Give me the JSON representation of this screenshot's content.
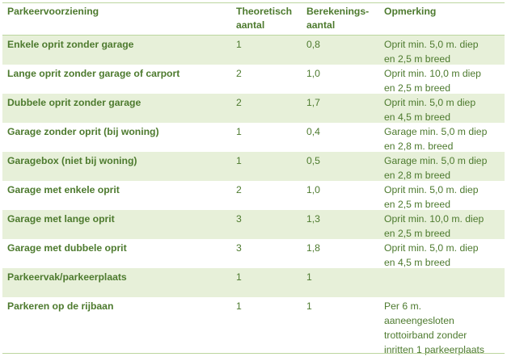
{
  "table": {
    "headers": [
      "Parkeervoorziening",
      "Theoretisch aantal",
      "Berekenings-aantal",
      "Opmerking"
    ],
    "header_lines": [
      [
        "Parkeervoorziening"
      ],
      [
        "Theoretisch",
        "aantal"
      ],
      [
        "Berekenings-",
        "aantal"
      ],
      [
        "Opmerking"
      ]
    ],
    "rows": [
      {
        "name": "Enkele oprit zonder garage",
        "theoretisch": "1",
        "berekening": "0,8",
        "opmerking": [
          "Oprit min. 5,0 m. diep",
          "en 2,5 m breed"
        ]
      },
      {
        "name": "Lange oprit zonder garage of carport",
        "theoretisch": "2",
        "berekening": "1,0",
        "opmerking": [
          "Oprit min. 10,0 m diep",
          "en 2,5 m breed"
        ]
      },
      {
        "name": "Dubbele oprit zonder garage",
        "theoretisch": "2",
        "berekening": "1,7",
        "opmerking": [
          "Oprit min. 5,0 m diep",
          "en 4,5 m breed"
        ]
      },
      {
        "name": "Garage zonder oprit (bij woning)",
        "theoretisch": "1",
        "berekening": "0,4",
        "opmerking": [
          "Garage min. 5,0 m diep",
          "en 2,8 m. breed"
        ]
      },
      {
        "name": "Garagebox (niet bij woning)",
        "theoretisch": "1",
        "berekening": "0,5",
        "opmerking": [
          "Garage min. 5,0 m diep",
          "en 2,8 m breed"
        ]
      },
      {
        "name": "Garage met enkele oprit",
        "theoretisch": "2",
        "berekening": "1,0",
        "opmerking": [
          "Oprit min. 5,0 m. diep",
          "en 2,5 m breed"
        ]
      },
      {
        "name": "Garage met lange oprit",
        "theoretisch": "3",
        "berekening": "1,3",
        "opmerking": [
          "Oprit min. 10,0 m. diep",
          "en 2,5 m breed"
        ]
      },
      {
        "name": "Garage met dubbele oprit",
        "theoretisch": "3",
        "berekening": "1,8",
        "opmerking": [
          "Oprit min. 5,0 m. diep",
          "en 4,5 m breed"
        ]
      },
      {
        "name": "Parkeervak/parkeerplaats",
        "theoretisch": "1",
        "berekening": "1",
        "opmerking": []
      },
      {
        "name": "Parkeren op de rijbaan",
        "theoretisch": "1",
        "berekening": "1",
        "opmerking": [
          "Per 6 m.",
          "aaneengesloten",
          "trottoirband zonder",
          "inritten 1 parkeerplaats"
        ]
      }
    ]
  }
}
